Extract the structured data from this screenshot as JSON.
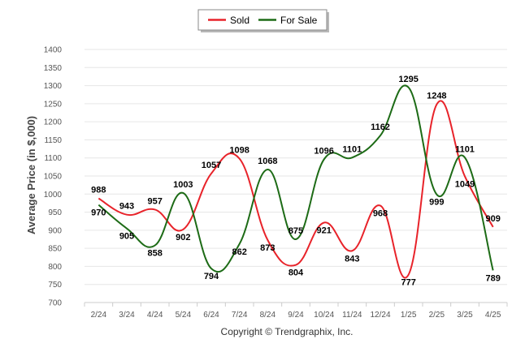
{
  "chart_data": {
    "type": "line",
    "ylabel": "Average Price (in $,000)",
    "ylim": [
      700,
      1400
    ],
    "yticks": [
      "700",
      "750",
      "800",
      "850",
      "900",
      "950",
      "1000",
      "1050",
      "1100",
      "1150",
      "1200",
      "1250",
      "1300",
      "1350",
      "1400"
    ],
    "categories": [
      "2/24",
      "3/24",
      "4/24",
      "5/24",
      "6/24",
      "7/24",
      "8/24",
      "9/24",
      "10/24",
      "11/24",
      "12/24",
      "1/25",
      "2/25",
      "3/25",
      "4/25"
    ],
    "grid": true,
    "legend_position": "top-center",
    "series": [
      {
        "name": "Sold",
        "color": "#e8232a",
        "values": [
          988,
          943,
          957,
          902,
          1057,
          1098,
          873,
          804,
          921,
          843,
          968,
          777,
          1248,
          1049,
          909
        ]
      },
      {
        "name": "For Sale",
        "color": "#1d6b16",
        "values": [
          970,
          905,
          858,
          1003,
          794,
          862,
          1068,
          875,
          1096,
          1101,
          1162,
          1295,
          999,
          1101,
          789
        ]
      }
    ],
    "footer": "Copyright © Trendgraphix, Inc."
  }
}
